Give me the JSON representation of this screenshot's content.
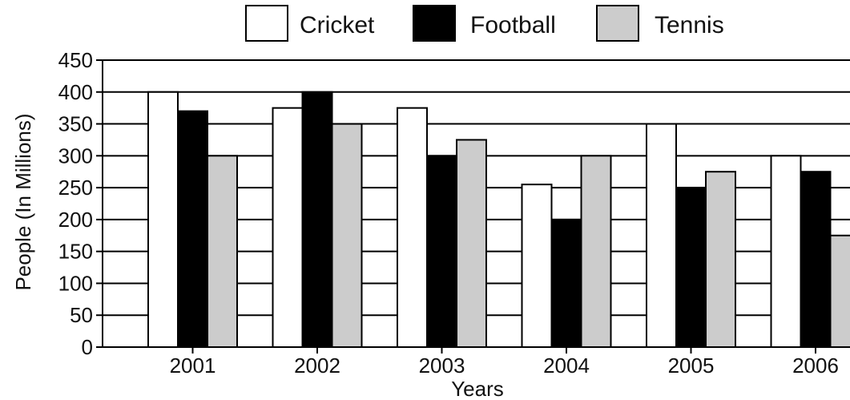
{
  "chart_data": {
    "type": "bar",
    "title": "",
    "xlabel": "Years",
    "ylabel": "People (In Millions)",
    "categories": [
      "2001",
      "2002",
      "2003",
      "2004",
      "2005",
      "2006"
    ],
    "ylim": [
      0,
      450
    ],
    "yticks": [
      0,
      50,
      100,
      150,
      200,
      250,
      300,
      350,
      400,
      450
    ],
    "grid": true,
    "legend_position": "top",
    "series": [
      {
        "name": "Cricket",
        "color": "#ffffff",
        "values": [
          400,
          375,
          375,
          255,
          350,
          300
        ]
      },
      {
        "name": "Football",
        "color": "#000000",
        "values": [
          370,
          400,
          300,
          200,
          250,
          275
        ]
      },
      {
        "name": "Tennis",
        "color": "#cccccc",
        "values": [
          300,
          350,
          325,
          300,
          275,
          175
        ]
      }
    ]
  }
}
